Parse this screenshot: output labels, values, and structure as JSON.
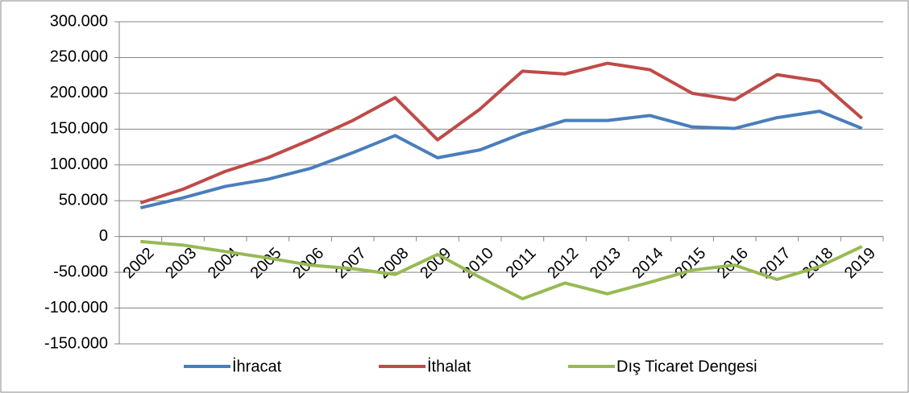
{
  "chart_data": {
    "type": "line",
    "categories": [
      "2002",
      "2003",
      "2004",
      "2005",
      "2006",
      "2007",
      "2008",
      "2009",
      "2010",
      "2011",
      "2012",
      "2013",
      "2014",
      "2015",
      "2016",
      "2017",
      "2018",
      "2019"
    ],
    "series": [
      {
        "name": "İhracat",
        "color": "#4a7ebb",
        "values": [
          40000,
          54000,
          70000,
          80000,
          95000,
          117000,
          141000,
          110000,
          121000,
          144000,
          162000,
          162000,
          169000,
          153000,
          151000,
          166000,
          175000,
          151000
        ]
      },
      {
        "name": "İthalat",
        "color": "#be4b48",
        "values": [
          47000,
          66000,
          91000,
          110000,
          135000,
          162000,
          194000,
          135000,
          178000,
          231000,
          227000,
          242000,
          233000,
          200000,
          191000,
          226000,
          217000,
          165000
        ]
      },
      {
        "name": "Dış Ticaret Dengesi",
        "color": "#98b954",
        "values": [
          -7000,
          -12000,
          -21000,
          -30000,
          -40000,
          -45000,
          -53000,
          -25000,
          -57000,
          -87000,
          -65000,
          -80000,
          -64000,
          -47000,
          -40000,
          -60000,
          -42000,
          -14000
        ]
      }
    ],
    "ylim": [
      -150000,
      300000
    ],
    "yticks": [
      {
        "value": -150000,
        "label": "-150.000"
      },
      {
        "value": -100000,
        "label": "-100.000"
      },
      {
        "value": -50000,
        "label": "-50.000"
      },
      0,
      {
        "value": 50000,
        "label": "50.000"
      },
      {
        "value": 100000,
        "label": "100.000"
      },
      {
        "value": 150000,
        "label": "150.000"
      },
      {
        "value": 200000,
        "label": "200.000"
      },
      {
        "value": 250000,
        "label": "250.000"
      },
      {
        "value": 300000,
        "label": "300.000"
      }
    ],
    "grid": true,
    "legend": "bottom"
  }
}
